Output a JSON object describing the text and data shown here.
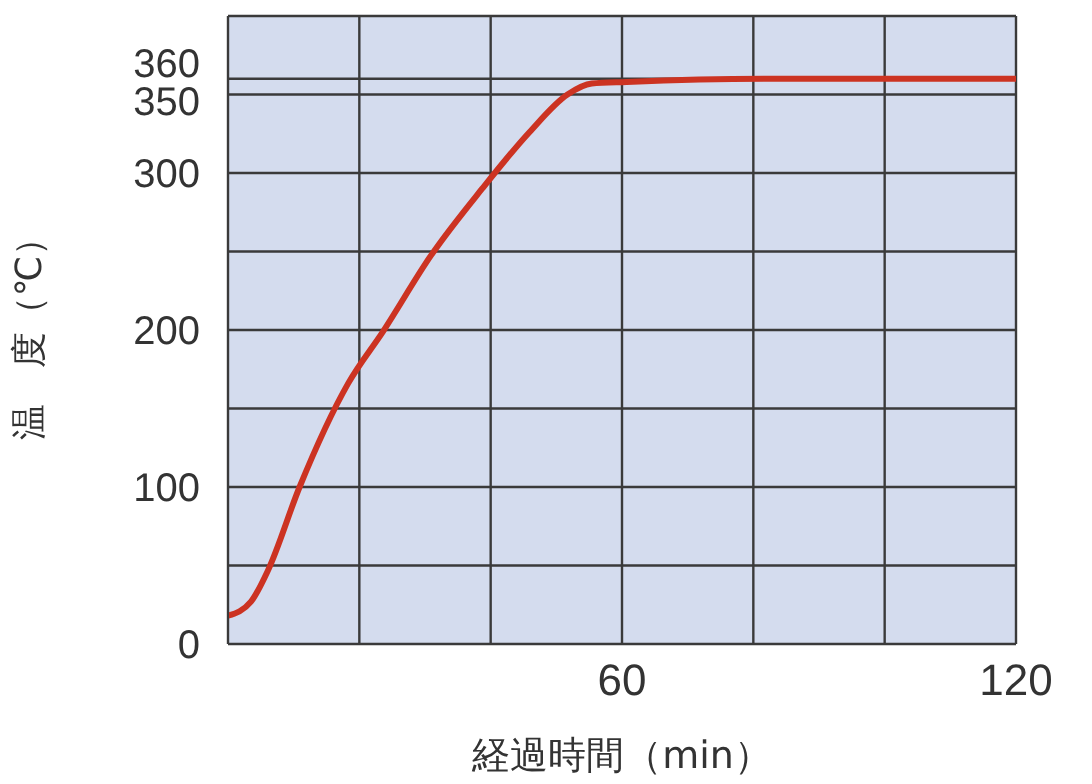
{
  "chart_data": {
    "type": "line",
    "xlabel": "経過時間（min）",
    "ylabel": "温　度（℃）",
    "xlim": [
      0,
      120
    ],
    "ylim": [
      0,
      400
    ],
    "xticks": [
      {
        "value": 0,
        "label": null
      },
      {
        "value": 20,
        "label": null
      },
      {
        "value": 40,
        "label": null
      },
      60,
      {
        "value": 80,
        "label": null
      },
      {
        "value": 100,
        "label": null
      },
      120
    ],
    "yticks": [
      0,
      {
        "value": 50,
        "label": null
      },
      100,
      {
        "value": 150,
        "label": null
      },
      200,
      {
        "value": 250,
        "label": null
      },
      300,
      350,
      360,
      {
        "value": 400,
        "label": null
      }
    ],
    "grid": true,
    "marker": "none",
    "line_style": "solid",
    "series": [
      {
        "color": "#cc3322",
        "x": [
          0,
          3.5,
          6.1,
          10.9,
          18.3,
          23.6,
          31,
          38.7,
          45.9,
          51.7,
          55.4,
          60.7,
          81.9,
          120
        ],
        "values": [
          18,
          27,
          47,
          100,
          166,
          199,
          248,
          290,
          326,
          350,
          357,
          358,
          360,
          360
        ]
      }
    ]
  }
}
